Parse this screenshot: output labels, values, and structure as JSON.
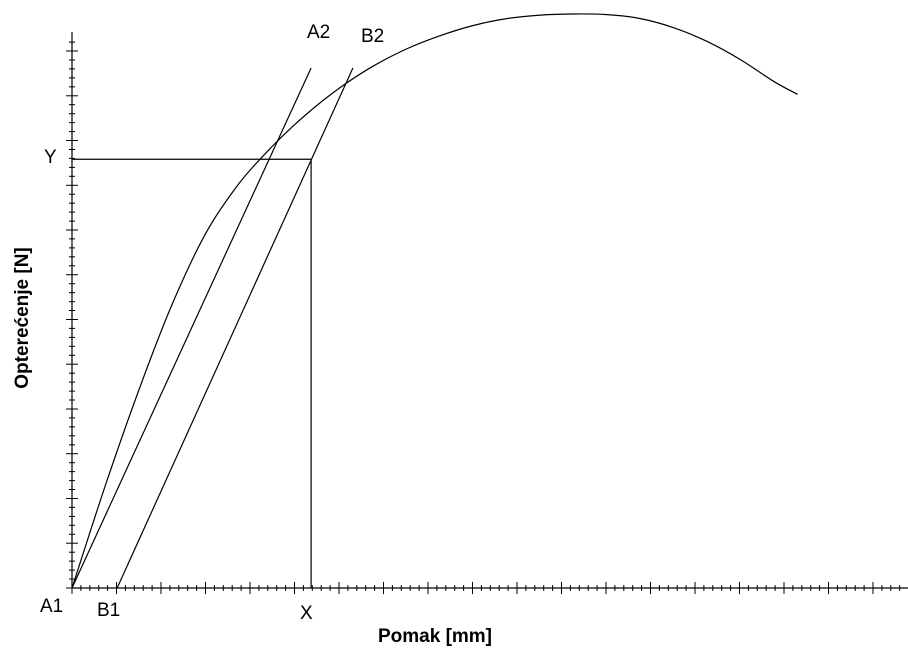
{
  "chart_data": {
    "type": "line",
    "title": "",
    "xlabel": "Pomak [mm]",
    "ylabel": "Opterećenje [N]",
    "grid": false,
    "legend": "none",
    "xlim": [
      0,
      1
    ],
    "ylim": [
      0,
      1
    ],
    "series": [
      {
        "role": "load-displacement-curve",
        "x": [
          0,
          0.04,
          0.08,
          0.12,
          0.16,
          0.2,
          0.24,
          0.28,
          0.32,
          0.36,
          0.4,
          0.44,
          0.48,
          0.52,
          0.56,
          0.6,
          0.64,
          0.68,
          0.72,
          0.76,
          0.8,
          0.84,
          0.868
        ],
        "y": [
          0,
          0.179,
          0.345,
          0.495,
          0.618,
          0.705,
          0.77,
          0.825,
          0.871,
          0.909,
          0.939,
          0.962,
          0.98,
          0.992,
          0.998,
          1.0,
          0.999,
          0.992,
          0.976,
          0.952,
          0.92,
          0.882,
          0.86
        ]
      },
      {
        "role": "secant-A",
        "x": [
          0,
          0.286
        ],
        "y": [
          0,
          0.906
        ]
      },
      {
        "role": "secant-B",
        "x": [
          0.054,
          0.336
        ],
        "y": [
          0,
          0.906
        ]
      }
    ],
    "reference_point": {
      "x": 0.286,
      "y": 0.747
    },
    "annotations": {
      "a1": "A1",
      "b1": "B1",
      "a2": "A2",
      "b2": "B2",
      "x_mark": "X",
      "y_mark": "Y"
    }
  }
}
